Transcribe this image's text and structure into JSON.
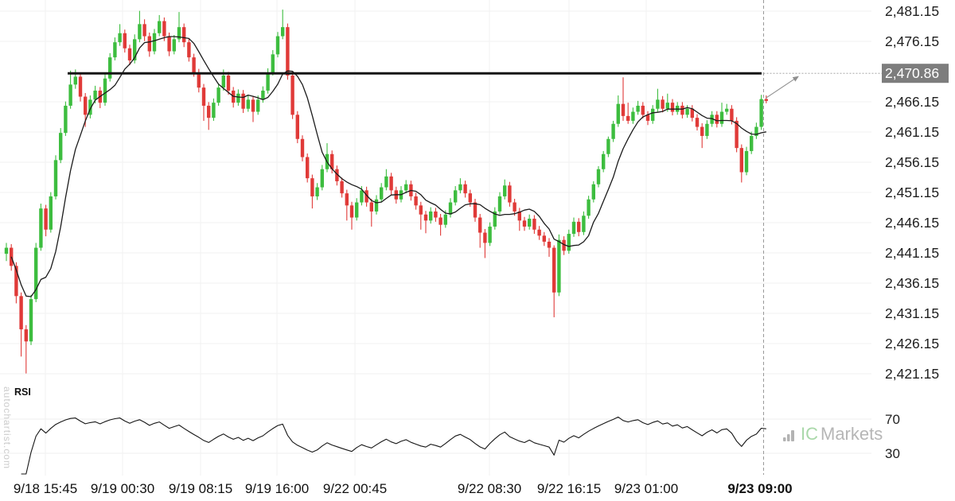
{
  "watermarks": {
    "vertical_left": "autochartist.com",
    "brand_ic": "IC",
    "brand_markets": "Markets"
  },
  "colors": {
    "up": "#3dbd3f",
    "down": "#e03a38",
    "ma_line": "#1b1b1b",
    "resistance_line": "#151515",
    "grid": "#f2f2f2",
    "rsi_grid": "#efefef",
    "axis_text": "#1f1f1f",
    "highlight_bg": "#7d7d7d",
    "highlight_text": "#ffffff",
    "dashed_line": "#999999",
    "arrow": "#8f8f8f",
    "rsi_line": "#161616"
  },
  "chart_data": {
    "type": "candlestick",
    "panes": [
      "price",
      "rsi"
    ],
    "y_axis": {
      "side": "right",
      "ticks": [
        {
          "price": 2481.15,
          "label": "2,481.15"
        },
        {
          "price": 2476.15,
          "label": "2,476.15"
        },
        {
          "price": 2470.86,
          "label": "2,470.86",
          "highlight": true
        },
        {
          "price": 2466.15,
          "label": "2,466.15"
        },
        {
          "price": 2461.15,
          "label": "2,461.15"
        },
        {
          "price": 2456.15,
          "label": "2,456.15"
        },
        {
          "price": 2451.15,
          "label": "2,451.15"
        },
        {
          "price": 2446.15,
          "label": "2,446.15"
        },
        {
          "price": 2441.15,
          "label": "2,441.15"
        },
        {
          "price": 2436.15,
          "label": "2,436.15"
        },
        {
          "price": 2431.15,
          "label": "2,431.15"
        },
        {
          "price": 2426.15,
          "label": "2,426.15"
        },
        {
          "price": 2421.15,
          "label": "2,421.15"
        }
      ],
      "ylim": [
        2419.0,
        2483.0
      ]
    },
    "x_axis": {
      "ticks": [
        {
          "label": "9/18 15:45"
        },
        {
          "label": "9/19 00:30"
        },
        {
          "label": "9/19 08:15"
        },
        {
          "label": "9/19 16:00"
        },
        {
          "label": "9/22 00:45"
        },
        {
          "label": "9/22 08:30"
        },
        {
          "label": "9/22 16:15"
        },
        {
          "label": "9/23 01:00"
        },
        {
          "label": "9/23 09:00",
          "bold": true
        }
      ]
    },
    "resistance_line": {
      "price": 2470.86,
      "label": "2,470.86"
    },
    "forecast_arrow": {
      "from_price": 2466.6,
      "to_price": 2470.86,
      "at_time": "9/23 09:00"
    },
    "ma": {
      "type": "sma",
      "period": 8
    },
    "rsi": {
      "label": "RSI",
      "period": 14,
      "levels": [
        70,
        30
      ],
      "level_labels": [
        "70",
        "30"
      ]
    },
    "candles": [
      [
        2441.0,
        2442.8,
        2439.8,
        2442.0
      ],
      [
        2442.0,
        2442.6,
        2438.2,
        2439.0
      ],
      [
        2439.0,
        2439.6,
        2432.8,
        2434.0
      ],
      [
        2434.0,
        2434.6,
        2424.0,
        2428.5
      ],
      [
        2428.5,
        2429.2,
        2421.2,
        2426.5
      ],
      [
        2426.5,
        2434.2,
        2425.9,
        2433.5
      ],
      [
        2433.5,
        2442.8,
        2433.0,
        2442.0
      ],
      [
        2442.0,
        2449.3,
        2441.5,
        2448.5
      ],
      [
        2448.5,
        2449.1,
        2443.9,
        2445.0
      ],
      [
        2445.0,
        2451.2,
        2444.5,
        2450.5
      ],
      [
        2450.5,
        2457.3,
        2450.0,
        2456.5
      ],
      [
        2456.5,
        2461.8,
        2456.0,
        2461.0
      ],
      [
        2461.0,
        2466.2,
        2460.5,
        2465.5
      ],
      [
        2465.5,
        2471.3,
        2465.0,
        2469.0
      ],
      [
        2469.0,
        2471.5,
        2468.3,
        2470.3
      ],
      [
        2470.3,
        2470.9,
        2466.2,
        2467.0
      ],
      [
        2467.0,
        2467.6,
        2462.0,
        2464.0
      ],
      [
        2464.0,
        2467.2,
        2463.4,
        2466.5
      ],
      [
        2466.5,
        2468.8,
        2465.9,
        2468.0
      ],
      [
        2468.0,
        2468.6,
        2465.1,
        2466.0
      ],
      [
        2466.0,
        2470.7,
        2465.5,
        2470.0
      ],
      [
        2470.0,
        2474.2,
        2469.5,
        2473.5
      ],
      [
        2473.5,
        2476.8,
        2473.0,
        2476.0
      ],
      [
        2476.0,
        2479.0,
        2475.4,
        2477.5
      ],
      [
        2477.5,
        2478.1,
        2474.3,
        2475.0
      ],
      [
        2475.0,
        2475.6,
        2472.2,
        2473.0
      ],
      [
        2473.0,
        2477.3,
        2472.5,
        2476.5
      ],
      [
        2476.5,
        2481.2,
        2476.0,
        2479.0
      ],
      [
        2479.0,
        2479.8,
        2476.2,
        2477.0
      ],
      [
        2477.0,
        2477.6,
        2473.6,
        2474.5
      ],
      [
        2474.5,
        2478.2,
        2474.0,
        2477.5
      ],
      [
        2477.5,
        2480.5,
        2477.0,
        2479.5
      ],
      [
        2479.5,
        2480.1,
        2476.2,
        2477.0
      ],
      [
        2477.0,
        2477.6,
        2473.7,
        2474.5
      ],
      [
        2474.5,
        2477.2,
        2474.0,
        2476.5
      ],
      [
        2476.5,
        2481.0,
        2476.0,
        2478.5
      ],
      [
        2478.5,
        2479.1,
        2475.2,
        2476.0
      ],
      [
        2476.0,
        2476.6,
        2472.8,
        2473.5
      ],
      [
        2473.5,
        2474.1,
        2470.3,
        2471.0
      ],
      [
        2471.0,
        2471.6,
        2467.7,
        2468.5
      ],
      [
        2468.5,
        2469.1,
        2463.0,
        2465.5
      ],
      [
        2465.5,
        2466.1,
        2461.5,
        2463.5
      ],
      [
        2463.5,
        2466.7,
        2463.0,
        2466.0
      ],
      [
        2466.0,
        2469.2,
        2465.5,
        2468.5
      ],
      [
        2468.5,
        2471.5,
        2468.0,
        2470.5
      ],
      [
        2470.5,
        2471.1,
        2467.3,
        2468.0
      ],
      [
        2468.0,
        2468.6,
        2465.2,
        2466.0
      ],
      [
        2466.0,
        2468.2,
        2465.5,
        2467.5
      ],
      [
        2467.5,
        2468.1,
        2464.3,
        2465.0
      ],
      [
        2465.0,
        2467.2,
        2464.5,
        2466.5
      ],
      [
        2466.5,
        2467.1,
        2462.8,
        2464.5
      ],
      [
        2464.5,
        2467.2,
        2464.0,
        2466.5
      ],
      [
        2466.5,
        2468.7,
        2466.0,
        2468.0
      ],
      [
        2468.0,
        2471.7,
        2467.5,
        2471.0
      ],
      [
        2471.0,
        2474.7,
        2470.5,
        2474.0
      ],
      [
        2474.0,
        2477.7,
        2473.5,
        2477.0
      ],
      [
        2477.0,
        2481.4,
        2476.5,
        2478.5
      ],
      [
        2478.5,
        2479.1,
        2469.8,
        2470.5
      ],
      [
        2470.5,
        2471.1,
        2463.3,
        2464.0
      ],
      [
        2464.0,
        2464.6,
        2459.3,
        2460.0
      ],
      [
        2460.0,
        2460.6,
        2456.3,
        2457.0
      ],
      [
        2457.0,
        2457.6,
        2452.8,
        2453.5
      ],
      [
        2453.5,
        2454.1,
        2448.5,
        2450.5
      ],
      [
        2450.5,
        2452.7,
        2449.9,
        2452.0
      ],
      [
        2452.0,
        2455.7,
        2451.5,
        2455.0
      ],
      [
        2455.0,
        2459.3,
        2454.5,
        2457.5
      ],
      [
        2457.5,
        2458.1,
        2454.3,
        2455.0
      ],
      [
        2455.0,
        2455.6,
        2452.3,
        2453.0
      ],
      [
        2453.0,
        2453.6,
        2450.3,
        2451.0
      ],
      [
        2451.0,
        2451.6,
        2446.5,
        2449.0
      ],
      [
        2449.0,
        2449.6,
        2445.0,
        2447.0
      ],
      [
        2447.0,
        2450.2,
        2446.5,
        2449.5
      ],
      [
        2449.5,
        2452.2,
        2449.0,
        2451.5
      ],
      [
        2451.5,
        2452.1,
        2448.8,
        2449.5
      ],
      [
        2449.5,
        2450.1,
        2445.5,
        2448.0
      ],
      [
        2448.0,
        2450.7,
        2447.5,
        2450.0
      ],
      [
        2450.0,
        2452.7,
        2449.5,
        2452.0
      ],
      [
        2452.0,
        2455.0,
        2451.5,
        2453.8
      ],
      [
        2453.8,
        2454.4,
        2450.8,
        2451.5
      ],
      [
        2451.5,
        2452.1,
        2449.3,
        2450.0
      ],
      [
        2450.0,
        2452.2,
        2449.5,
        2451.5
      ],
      [
        2451.5,
        2453.2,
        2451.0,
        2452.5
      ],
      [
        2452.5,
        2453.1,
        2449.8,
        2450.5
      ],
      [
        2450.5,
        2451.1,
        2448.3,
        2449.0
      ],
      [
        2449.0,
        2449.6,
        2445.0,
        2447.5
      ],
      [
        2447.5,
        2448.1,
        2444.4,
        2446.5
      ],
      [
        2446.5,
        2448.7,
        2446.0,
        2448.0
      ],
      [
        2448.0,
        2448.6,
        2446.3,
        2447.0
      ],
      [
        2447.0,
        2447.6,
        2444.0,
        2445.8
      ],
      [
        2445.8,
        2448.2,
        2445.3,
        2447.5
      ],
      [
        2447.5,
        2450.2,
        2447.0,
        2449.5
      ],
      [
        2449.5,
        2452.2,
        2449.0,
        2451.5
      ],
      [
        2451.5,
        2453.5,
        2451.0,
        2452.5
      ],
      [
        2452.5,
        2453.1,
        2450.3,
        2451.0
      ],
      [
        2451.0,
        2451.6,
        2448.8,
        2449.5
      ],
      [
        2449.5,
        2450.1,
        2446.3,
        2447.0
      ],
      [
        2447.0,
        2447.6,
        2442.0,
        2444.5
      ],
      [
        2444.5,
        2445.1,
        2440.3,
        2442.8
      ],
      [
        2442.8,
        2446.2,
        2442.3,
        2445.5
      ],
      [
        2445.5,
        2448.7,
        2445.0,
        2448.0
      ],
      [
        2448.0,
        2451.2,
        2447.5,
        2450.5
      ],
      [
        2450.5,
        2453.3,
        2450.0,
        2452.3
      ],
      [
        2452.3,
        2452.9,
        2448.8,
        2449.5
      ],
      [
        2449.5,
        2450.1,
        2447.3,
        2448.0
      ],
      [
        2448.0,
        2448.6,
        2444.8,
        2446.5
      ],
      [
        2446.5,
        2447.1,
        2444.8,
        2445.5
      ],
      [
        2445.5,
        2447.5,
        2445.0,
        2446.8
      ],
      [
        2446.8,
        2447.4,
        2444.3,
        2445.0
      ],
      [
        2445.0,
        2445.6,
        2443.3,
        2444.0
      ],
      [
        2444.0,
        2444.6,
        2442.3,
        2443.0
      ],
      [
        2443.0,
        2443.6,
        2440.5,
        2442.0
      ],
      [
        2442.0,
        2442.4,
        2430.5,
        2434.6
      ],
      [
        2434.6,
        2444.2,
        2434.0,
        2443.3
      ],
      [
        2443.3,
        2443.9,
        2440.8,
        2441.5
      ],
      [
        2441.5,
        2445.0,
        2441.0,
        2444.3
      ],
      [
        2444.3,
        2447.0,
        2443.8,
        2446.3
      ],
      [
        2446.3,
        2446.9,
        2443.9,
        2444.6
      ],
      [
        2444.6,
        2448.0,
        2444.1,
        2447.3
      ],
      [
        2447.3,
        2450.6,
        2446.8,
        2450.0
      ],
      [
        2450.0,
        2453.0,
        2449.5,
        2452.5
      ],
      [
        2452.5,
        2455.5,
        2452.0,
        2455.0
      ],
      [
        2455.0,
        2458.0,
        2454.5,
        2457.5
      ],
      [
        2457.5,
        2460.4,
        2457.0,
        2460.0
      ],
      [
        2460.0,
        2463.0,
        2459.5,
        2462.5
      ],
      [
        2462.5,
        2467.2,
        2462.0,
        2465.8
      ],
      [
        2465.8,
        2470.2,
        2463.0,
        2463.8
      ],
      [
        2463.8,
        2466.0,
        2462.5,
        2463.0
      ],
      [
        2463.0,
        2465.2,
        2462.5,
        2464.5
      ],
      [
        2464.5,
        2466.3,
        2464.0,
        2465.5
      ],
      [
        2465.5,
        2466.1,
        2463.4,
        2464.0
      ],
      [
        2464.0,
        2464.6,
        2462.3,
        2463.0
      ],
      [
        2463.0,
        2465.6,
        2462.5,
        2465.0
      ],
      [
        2465.0,
        2468.3,
        2464.5,
        2466.5
      ],
      [
        2466.5,
        2467.1,
        2464.4,
        2465.0
      ],
      [
        2465.0,
        2467.5,
        2464.5,
        2466.0
      ],
      [
        2466.0,
        2466.6,
        2463.9,
        2464.5
      ],
      [
        2464.5,
        2466.1,
        2464.0,
        2465.5
      ],
      [
        2465.5,
        2466.1,
        2463.4,
        2464.0
      ],
      [
        2464.0,
        2465.6,
        2463.5,
        2465.0
      ],
      [
        2465.0,
        2465.6,
        2462.9,
        2463.5
      ],
      [
        2463.5,
        2464.1,
        2461.4,
        2462.0
      ],
      [
        2462.0,
        2462.6,
        2458.5,
        2460.5
      ],
      [
        2460.5,
        2463.1,
        2460.0,
        2462.5
      ],
      [
        2462.5,
        2464.6,
        2462.0,
        2464.0
      ],
      [
        2464.0,
        2464.6,
        2461.9,
        2462.5
      ],
      [
        2462.5,
        2466.0,
        2462.0,
        2464.5
      ],
      [
        2464.5,
        2465.8,
        2464.0,
        2465.0
      ],
      [
        2465.0,
        2465.6,
        2462.4,
        2463.0
      ],
      [
        2463.0,
        2463.6,
        2457.8,
        2458.5
      ],
      [
        2458.5,
        2459.1,
        2452.8,
        2454.5
      ],
      [
        2454.5,
        2458.7,
        2454.0,
        2458.0
      ],
      [
        2458.0,
        2461.2,
        2457.5,
        2460.5
      ],
      [
        2460.5,
        2462.7,
        2460.0,
        2462.0
      ],
      [
        2462.0,
        2467.3,
        2461.5,
        2466.6
      ],
      [
        2466.6,
        2467.2,
        2465.9,
        2466.3
      ]
    ]
  }
}
